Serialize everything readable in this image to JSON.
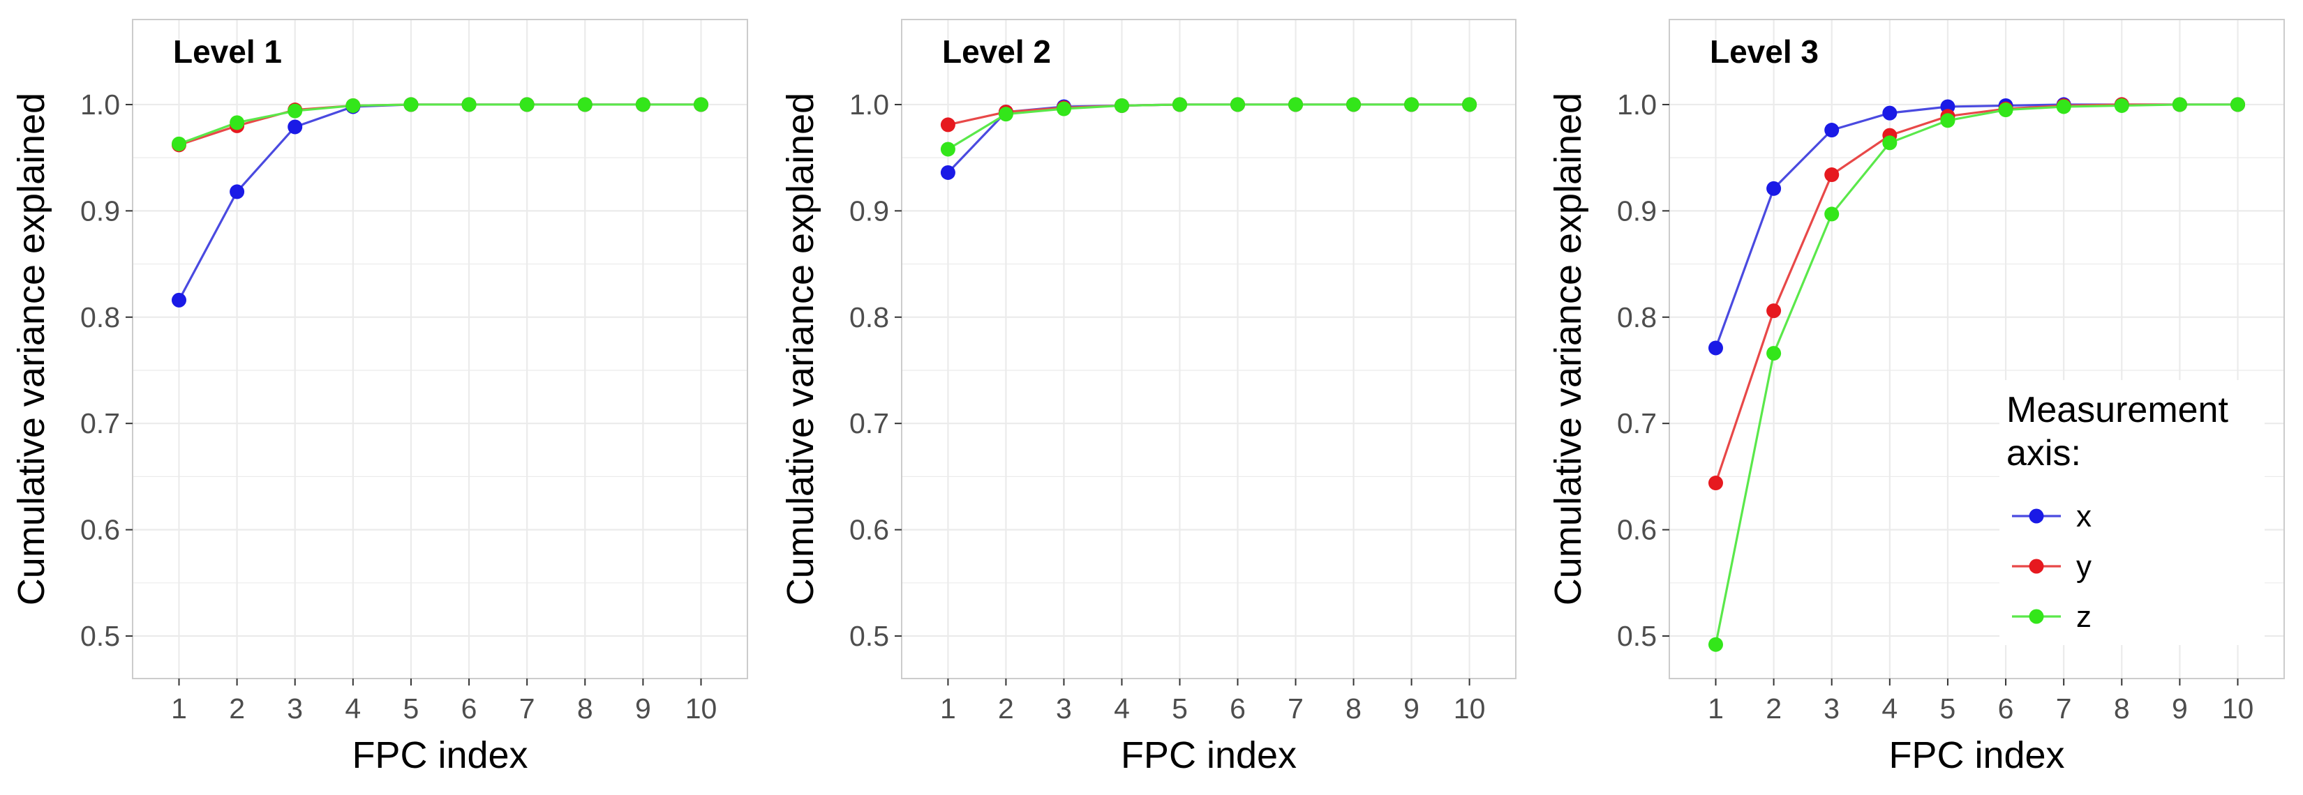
{
  "chart_data": [
    {
      "type": "line",
      "title": "Level 1",
      "xlabel": "FPC index",
      "ylabel": "Cumulative variance explained",
      "x": [
        1,
        2,
        3,
        4,
        5,
        6,
        7,
        8,
        9,
        10
      ],
      "ylim": [
        0.46,
        1.08
      ],
      "yticks": [
        0.5,
        0.6,
        0.7,
        0.8,
        0.9,
        1.0
      ],
      "ytick_labels": [
        "0.5",
        "0.6",
        "0.7",
        "0.8",
        "0.9",
        "1.0"
      ],
      "xtick_labels": [
        "1",
        "2",
        "3",
        "4",
        "5",
        "6",
        "7",
        "8",
        "9",
        "10"
      ],
      "grid": true,
      "series": [
        {
          "name": "x",
          "values": [
            0.816,
            0.918,
            0.979,
            0.998,
            1.0,
            1.0,
            1.0,
            1.0,
            1.0,
            1.0
          ]
        },
        {
          "name": "y",
          "values": [
            0.962,
            0.98,
            0.995,
            0.999,
            1.0,
            1.0,
            1.0,
            1.0,
            1.0,
            1.0
          ]
        },
        {
          "name": "z",
          "values": [
            0.963,
            0.983,
            0.994,
            0.999,
            1.0,
            1.0,
            1.0,
            1.0,
            1.0,
            1.0
          ]
        }
      ]
    },
    {
      "type": "line",
      "title": "Level 2",
      "xlabel": "FPC index",
      "ylabel": "Cumulative variance explained",
      "x": [
        1,
        2,
        3,
        4,
        5,
        6,
        7,
        8,
        9,
        10
      ],
      "ylim": [
        0.46,
        1.08
      ],
      "yticks": [
        0.5,
        0.6,
        0.7,
        0.8,
        0.9,
        1.0
      ],
      "ytick_labels": [
        "0.5",
        "0.6",
        "0.7",
        "0.8",
        "0.9",
        "1.0"
      ],
      "xtick_labels": [
        "1",
        "2",
        "3",
        "4",
        "5",
        "6",
        "7",
        "8",
        "9",
        "10"
      ],
      "grid": true,
      "series": [
        {
          "name": "x",
          "values": [
            0.936,
            0.993,
            0.998,
            0.999,
            1.0,
            1.0,
            1.0,
            1.0,
            1.0,
            1.0
          ]
        },
        {
          "name": "y",
          "values": [
            0.981,
            0.993,
            0.997,
            0.999,
            1.0,
            1.0,
            1.0,
            1.0,
            1.0,
            1.0
          ]
        },
        {
          "name": "z",
          "values": [
            0.958,
            0.991,
            0.996,
            0.999,
            1.0,
            1.0,
            1.0,
            1.0,
            1.0,
            1.0
          ]
        }
      ]
    },
    {
      "type": "line",
      "title": "Level 3",
      "xlabel": "FPC index",
      "ylabel": "Cumulative variance explained",
      "x": [
        1,
        2,
        3,
        4,
        5,
        6,
        7,
        8,
        9,
        10
      ],
      "ylim": [
        0.46,
        1.08
      ],
      "yticks": [
        0.5,
        0.6,
        0.7,
        0.8,
        0.9,
        1.0
      ],
      "ytick_labels": [
        "0.5",
        "0.6",
        "0.7",
        "0.8",
        "0.9",
        "1.0"
      ],
      "xtick_labels": [
        "1",
        "2",
        "3",
        "4",
        "5",
        "6",
        "7",
        "8",
        "9",
        "10"
      ],
      "grid": true,
      "series": [
        {
          "name": "x",
          "values": [
            0.771,
            0.921,
            0.976,
            0.992,
            0.998,
            0.999,
            1.0,
            1.0,
            1.0,
            1.0
          ]
        },
        {
          "name": "y",
          "values": [
            0.644,
            0.806,
            0.934,
            0.971,
            0.989,
            0.996,
            0.999,
            1.0,
            1.0,
            1.0
          ]
        },
        {
          "name": "z",
          "values": [
            0.492,
            0.766,
            0.897,
            0.964,
            0.985,
            0.995,
            0.998,
            0.999,
            1.0,
            1.0
          ]
        }
      ],
      "legend": {
        "title": "Measurement axis:",
        "title_lines": [
          "Measurement",
          "axis:"
        ],
        "position": "inside-bottom-right",
        "entries": [
          "x",
          "y",
          "z"
        ]
      }
    }
  ],
  "colors": {
    "x": "#1a1ae6",
    "y": "#e6191f",
    "z": "#33e61a",
    "x_line": "#4a4ae0",
    "y_line": "#e84848",
    "z_line": "#5ae84a",
    "grid": "#ebebeb",
    "panel_border": "#cccccc",
    "tick_mark": "#333333"
  }
}
